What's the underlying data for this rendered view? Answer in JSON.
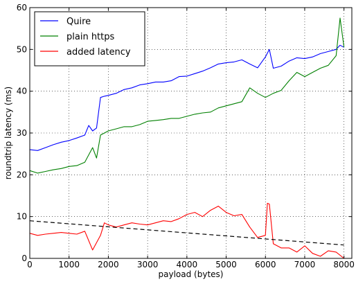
{
  "chart_data": {
    "type": "line",
    "title": "",
    "xlabel": "payload (bytes)",
    "ylabel": "roundtrip latency (ms)",
    "xlim": [
      0,
      8200
    ],
    "ylim": [
      0,
      60
    ],
    "x_ticks": [
      0,
      1000,
      2000,
      3000,
      4000,
      5000,
      6000,
      7000,
      8000
    ],
    "x_tick_labels": [
      "0",
      "1000",
      "2000",
      "3000",
      "4000",
      "5000",
      "6000",
      "7000",
      "8000"
    ],
    "y_ticks": [
      0,
      10,
      20,
      30,
      40,
      50,
      60
    ],
    "y_tick_labels": [
      "0",
      "10",
      "20",
      "30",
      "40",
      "50",
      "60"
    ],
    "grid": true,
    "legend_position": "top-left",
    "series": [
      {
        "name": "Quire",
        "color": "#0000ff",
        "x": [
          0,
          200,
          400,
          600,
          800,
          1000,
          1200,
          1400,
          1500,
          1600,
          1700,
          1800,
          1900,
          2000,
          2200,
          2400,
          2600,
          2800,
          3000,
          3200,
          3400,
          3600,
          3800,
          4000,
          4200,
          4400,
          4600,
          4800,
          5000,
          5200,
          5400,
          5600,
          5800,
          6000,
          6100,
          6200,
          6400,
          6600,
          6800,
          7000,
          7200,
          7400,
          7600,
          7800,
          7900,
          8000
        ],
        "y": [
          26,
          25.8,
          26.5,
          27.2,
          27.8,
          28.2,
          28.8,
          29.5,
          31.8,
          30.5,
          31.2,
          38.5,
          38.8,
          39,
          39.5,
          40.4,
          40.8,
          41.5,
          41.8,
          42.2,
          42.2,
          42.5,
          43.5,
          43.6,
          44.2,
          44.8,
          45.6,
          46.5,
          46.8,
          47,
          47.5,
          46.5,
          45.6,
          48.2,
          50,
          45.5,
          46,
          47.2,
          48,
          47.8,
          48.2,
          49,
          49.5,
          50,
          51,
          50.5
        ]
      },
      {
        "name": "plain https",
        "color": "#008000",
        "x": [
          0,
          200,
          400,
          600,
          800,
          1000,
          1200,
          1400,
          1600,
          1700,
          1800,
          2000,
          2200,
          2400,
          2600,
          2800,
          3000,
          3200,
          3400,
          3600,
          3800,
          4000,
          4200,
          4400,
          4600,
          4800,
          5000,
          5200,
          5400,
          5600,
          5800,
          6000,
          6200,
          6400,
          6600,
          6800,
          7000,
          7200,
          7400,
          7600,
          7800,
          7900,
          8000
        ],
        "y": [
          21,
          20.4,
          20.8,
          21.2,
          21.5,
          22,
          22.2,
          23,
          26.5,
          24,
          29.5,
          30.5,
          31,
          31.5,
          31.5,
          32,
          32.8,
          33,
          33.2,
          33.5,
          33.5,
          34,
          34.5,
          34.8,
          35,
          36,
          36.5,
          37,
          37.5,
          40.8,
          39.5,
          38.5,
          39.5,
          40.2,
          42.5,
          44.5,
          43.5,
          44.5,
          45.5,
          46.2,
          48.5,
          57.5,
          50.5
        ]
      },
      {
        "name": "added latency",
        "color": "#ff0000",
        "x": [
          0,
          200,
          400,
          600,
          800,
          1000,
          1200,
          1400,
          1600,
          1800,
          1900,
          2000,
          2200,
          2400,
          2600,
          2800,
          3000,
          3200,
          3400,
          3600,
          3800,
          4000,
          4200,
          4400,
          4600,
          4800,
          5000,
          5200,
          5400,
          5600,
          5800,
          6000,
          6050,
          6100,
          6200,
          6400,
          6600,
          6800,
          7000,
          7200,
          7400,
          7600,
          7800,
          8000
        ],
        "y": [
          6,
          5.5,
          5.8,
          6,
          6.2,
          6,
          5.8,
          6.5,
          2,
          5.5,
          8.5,
          8,
          7.5,
          8,
          8.5,
          8.2,
          8,
          8.5,
          9,
          8.8,
          9.5,
          10.5,
          11,
          10,
          11.5,
          12.5,
          11,
          10.2,
          10.5,
          7.5,
          5,
          5.5,
          13.2,
          13,
          3.5,
          2.5,
          2.5,
          1.5,
          3,
          1.2,
          0.5,
          1.8,
          1.5,
          0
        ]
      },
      {
        "name": "",
        "color": "#000000",
        "dashed": true,
        "x": [
          0,
          8000
        ],
        "y": [
          9,
          3.2
        ]
      }
    ]
  }
}
